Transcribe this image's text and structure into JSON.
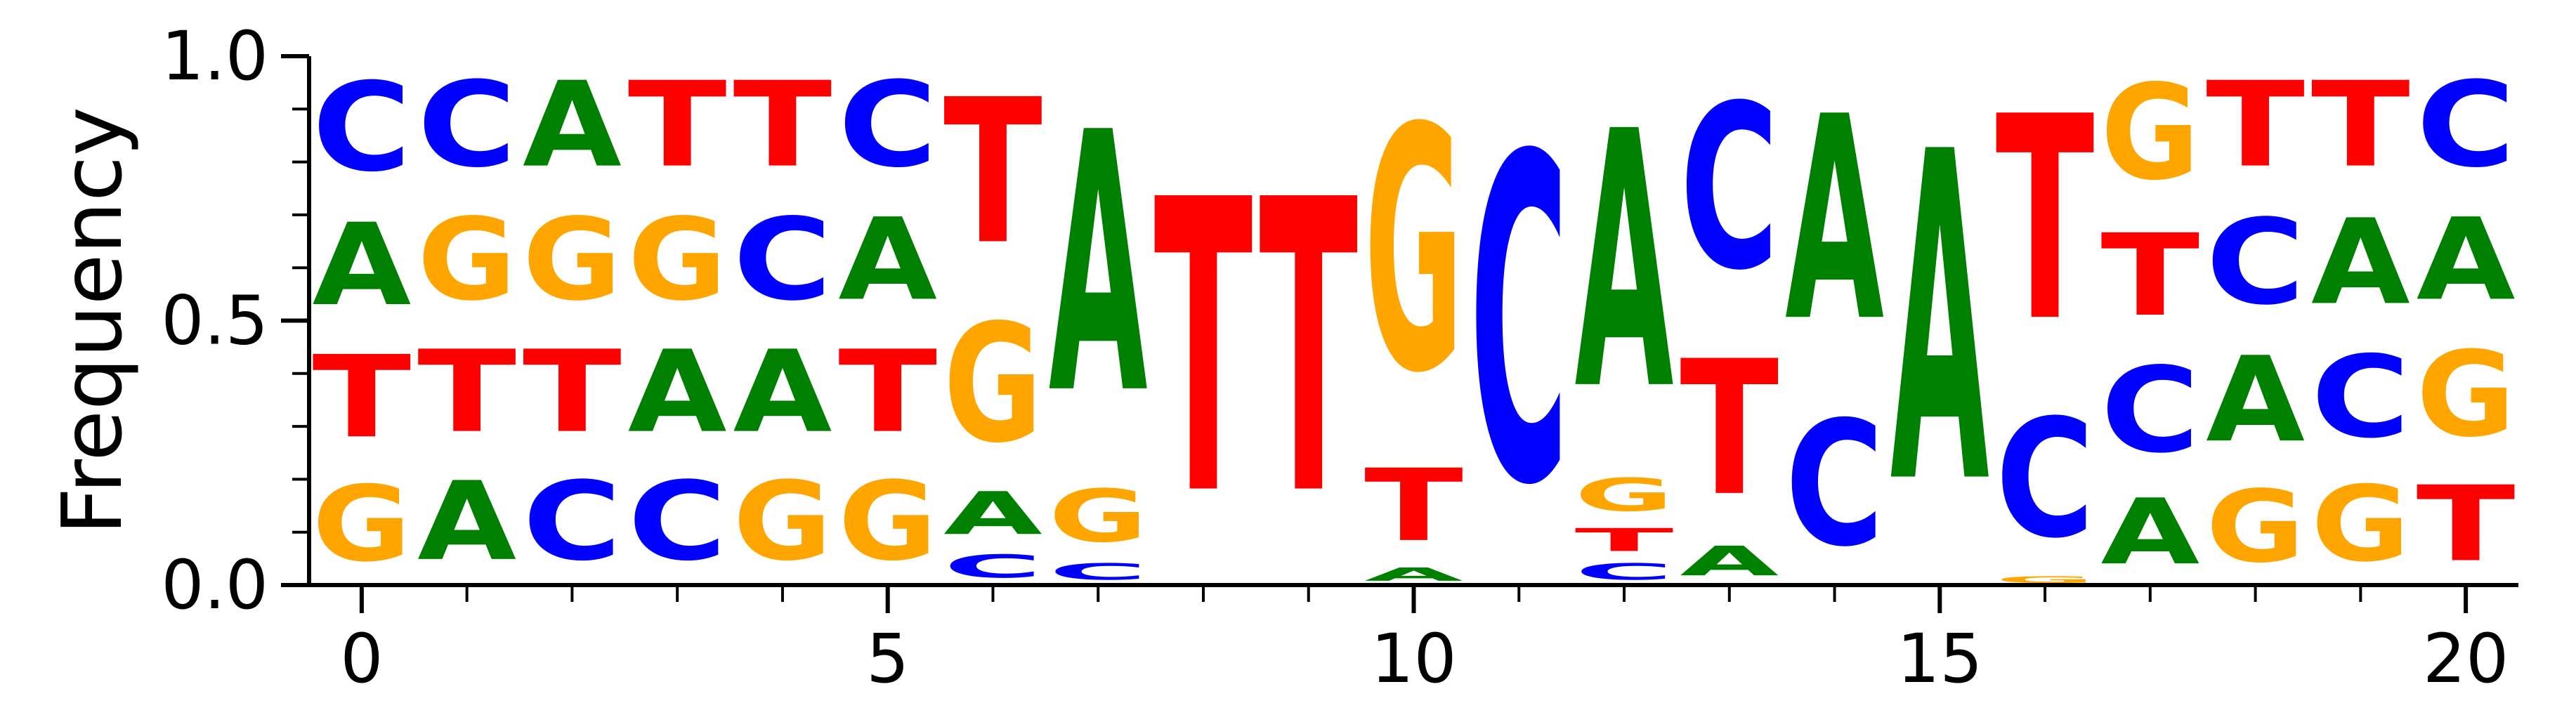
{
  "chart_data": {
    "type": "sequence-logo",
    "title": "",
    "xlabel": "",
    "ylabel": "Frequency",
    "xlim": [
      -0.5,
      20.5
    ],
    "ylim": [
      0.0,
      1.0
    ],
    "x_ticks": [
      0,
      5,
      10,
      15,
      20
    ],
    "y_ticks": [
      0.0,
      0.5,
      1.0
    ],
    "x_tick_labels": [
      "0",
      "5",
      "10",
      "15",
      "20"
    ],
    "y_tick_labels": [
      "0.0",
      "0.5",
      "1.0"
    ],
    "grid": false,
    "legend": "none",
    "colors": {
      "A": "#008000",
      "C": "#0000FF",
      "G": "#FFA500",
      "T": "#FF0000"
    },
    "positions": [
      {
        "x": 0,
        "stack": [
          [
            "G",
            0.23
          ],
          [
            "T",
            0.25
          ],
          [
            "A",
            0.25
          ],
          [
            "C",
            0.27
          ]
        ]
      },
      {
        "x": 1,
        "stack": [
          [
            "A",
            0.24
          ],
          [
            "T",
            0.25
          ],
          [
            "G",
            0.25
          ],
          [
            "C",
            0.26
          ]
        ]
      },
      {
        "x": 2,
        "stack": [
          [
            "C",
            0.24
          ],
          [
            "T",
            0.25
          ],
          [
            "G",
            0.25
          ],
          [
            "A",
            0.26
          ]
        ]
      },
      {
        "x": 3,
        "stack": [
          [
            "C",
            0.24
          ],
          [
            "A",
            0.25
          ],
          [
            "G",
            0.25
          ],
          [
            "T",
            0.26
          ]
        ]
      },
      {
        "x": 4,
        "stack": [
          [
            "G",
            0.24
          ],
          [
            "A",
            0.25
          ],
          [
            "C",
            0.25
          ],
          [
            "T",
            0.26
          ]
        ]
      },
      {
        "x": 5,
        "stack": [
          [
            "G",
            0.24
          ],
          [
            "T",
            0.25
          ],
          [
            "A",
            0.25
          ],
          [
            "C",
            0.26
          ]
        ]
      },
      {
        "x": 6,
        "stack": [
          [
            "C",
            0.07
          ],
          [
            "A",
            0.13
          ],
          [
            "G",
            0.36
          ],
          [
            "T",
            0.44
          ]
        ]
      },
      {
        "x": 7,
        "stack": [
          [
            "C",
            0.05
          ],
          [
            "G",
            0.16
          ],
          [
            "A",
            0.79
          ]
        ]
      },
      {
        "x": 8,
        "stack": [
          [
            "T",
            0.89
          ]
        ]
      },
      {
        "x": 9,
        "stack": [
          [
            "T",
            0.89
          ]
        ]
      },
      {
        "x": 10,
        "stack": [
          [
            "A",
            0.04
          ],
          [
            "T",
            0.22
          ],
          [
            "G",
            0.74
          ]
        ]
      },
      {
        "x": 11,
        "stack": [
          [
            "C",
            0.99
          ]
        ]
      },
      {
        "x": 12,
        "stack": [
          [
            "C",
            0.05
          ],
          [
            "T",
            0.07
          ],
          [
            "G",
            0.1
          ],
          [
            "A",
            0.78
          ]
        ]
      },
      {
        "x": 13,
        "stack": [
          [
            "A",
            0.09
          ],
          [
            "T",
            0.41
          ],
          [
            "C",
            0.5
          ]
        ]
      },
      {
        "x": 14,
        "stack": [
          [
            "C",
            0.38
          ],
          [
            "A",
            0.62
          ]
        ]
      },
      {
        "x": 15,
        "stack": [
          [
            "A",
            1.0
          ]
        ]
      },
      {
        "x": 16,
        "stack": [
          [
            "G",
            0.02
          ],
          [
            "C",
            0.36
          ],
          [
            "T",
            0.62
          ]
        ]
      },
      {
        "x": 17,
        "stack": [
          [
            "A",
            0.2
          ],
          [
            "C",
            0.26
          ],
          [
            "T",
            0.25
          ],
          [
            "G",
            0.29
          ]
        ]
      },
      {
        "x": 18,
        "stack": [
          [
            "G",
            0.22
          ],
          [
            "A",
            0.26
          ],
          [
            "C",
            0.26
          ],
          [
            "T",
            0.26
          ]
        ]
      },
      {
        "x": 19,
        "stack": [
          [
            "G",
            0.23
          ],
          [
            "C",
            0.25
          ],
          [
            "A",
            0.26
          ],
          [
            "T",
            0.26
          ]
        ]
      },
      {
        "x": 20,
        "stack": [
          [
            "T",
            0.23
          ],
          [
            "G",
            0.26
          ],
          [
            "A",
            0.25
          ],
          [
            "C",
            0.26
          ]
        ]
      }
    ]
  }
}
